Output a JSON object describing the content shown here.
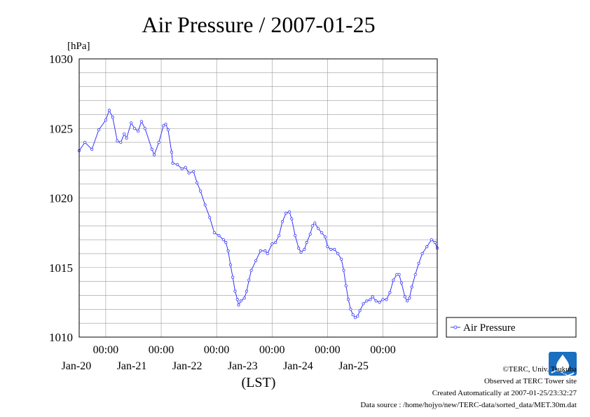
{
  "chart_data": {
    "type": "line",
    "title": "Air Pressure / 2007-01-25",
    "ylabel": "[hPa]",
    "xlabel": "(LST)",
    "ylim": [
      1010,
      1030
    ],
    "xlim": [
      "2007-01-19 12:30",
      "2007-01-25 23:30"
    ],
    "y_ticks": [
      "1010",
      "1015",
      "1020",
      "1025",
      "1030"
    ],
    "x_ticks": [
      {
        "time": "00:00",
        "date": "Jan-20"
      },
      {
        "time": "00:00",
        "date": "Jan-21"
      },
      {
        "time": "00:00",
        "date": "Jan-22"
      },
      {
        "time": "00:00",
        "date": "Jan-23"
      },
      {
        "time": "00:00",
        "date": "Jan-24"
      },
      {
        "time": "00:00",
        "date": "Jan-25"
      }
    ],
    "grid": true,
    "legend_position": "right",
    "series": [
      {
        "name": "Air Pressure",
        "color": "#3333ff",
        "points": [
          [
            "2007-01-19 12:30",
            1023.4
          ],
          [
            "2007-01-19 15:00",
            1024.0
          ],
          [
            "2007-01-19 18:00",
            1023.5
          ],
          [
            "2007-01-19 21:00",
            1024.9
          ],
          [
            "2007-01-20 00:00",
            1025.6
          ],
          [
            "2007-01-20 01:30",
            1026.3
          ],
          [
            "2007-01-20 03:00",
            1025.8
          ],
          [
            "2007-01-20 05:00",
            1024.1
          ],
          [
            "2007-01-20 06:30",
            1024.0
          ],
          [
            "2007-01-20 08:00",
            1024.6
          ],
          [
            "2007-01-20 09:00",
            1024.3
          ],
          [
            "2007-01-20 11:00",
            1025.4
          ],
          [
            "2007-01-20 12:30",
            1025.0
          ],
          [
            "2007-01-20 14:00",
            1024.8
          ],
          [
            "2007-01-20 15:30",
            1025.5
          ],
          [
            "2007-01-20 17:00",
            1025.0
          ],
          [
            "2007-01-20 20:00",
            1023.5
          ],
          [
            "2007-01-20 21:00",
            1023.1
          ],
          [
            "2007-01-20 23:00",
            1024.0
          ],
          [
            "2007-01-21 01:00",
            1025.2
          ],
          [
            "2007-01-21 02:00",
            1025.3
          ],
          [
            "2007-01-21 03:00",
            1024.9
          ],
          [
            "2007-01-21 04:30",
            1023.3
          ],
          [
            "2007-01-21 05:00",
            1022.5
          ],
          [
            "2007-01-21 07:00",
            1022.4
          ],
          [
            "2007-01-21 09:00",
            1022.1
          ],
          [
            "2007-01-21 10:30",
            1022.2
          ],
          [
            "2007-01-21 12:00",
            1021.8
          ],
          [
            "2007-01-21 14:00",
            1021.9
          ],
          [
            "2007-01-21 15:30",
            1021.1
          ],
          [
            "2007-01-21 17:00",
            1020.5
          ],
          [
            "2007-01-21 19:00",
            1019.5
          ],
          [
            "2007-01-21 21:00",
            1018.6
          ],
          [
            "2007-01-21 23:00",
            1017.5
          ],
          [
            "2007-01-22 01:00",
            1017.3
          ],
          [
            "2007-01-22 03:00",
            1017.0
          ],
          [
            "2007-01-22 04:00",
            1016.8
          ],
          [
            "2007-01-22 05:00",
            1016.2
          ],
          [
            "2007-01-22 06:00",
            1015.2
          ],
          [
            "2007-01-22 07:00",
            1014.3
          ],
          [
            "2007-01-22 08:00",
            1013.3
          ],
          [
            "2007-01-22 09:00",
            1012.7
          ],
          [
            "2007-01-22 09:30",
            1012.3
          ],
          [
            "2007-01-22 10:30",
            1012.6
          ],
          [
            "2007-01-22 12:00",
            1012.8
          ],
          [
            "2007-01-22 13:00",
            1013.3
          ],
          [
            "2007-01-22 14:00",
            1014.1
          ],
          [
            "2007-01-22 15:00",
            1014.8
          ],
          [
            "2007-01-22 17:00",
            1015.5
          ],
          [
            "2007-01-22 19:00",
            1016.2
          ],
          [
            "2007-01-22 21:00",
            1016.2
          ],
          [
            "2007-01-22 22:00",
            1016.0
          ],
          [
            "2007-01-23 00:00",
            1016.7
          ],
          [
            "2007-01-23 01:30",
            1016.8
          ],
          [
            "2007-01-23 03:00",
            1017.3
          ],
          [
            "2007-01-23 04:30",
            1018.3
          ],
          [
            "2007-01-23 06:00",
            1018.9
          ],
          [
            "2007-01-23 07:30",
            1019.0
          ],
          [
            "2007-01-23 08:30",
            1018.5
          ],
          [
            "2007-01-23 10:00",
            1017.3
          ],
          [
            "2007-01-23 11:30",
            1016.4
          ],
          [
            "2007-01-23 12:30",
            1016.1
          ],
          [
            "2007-01-23 14:00",
            1016.3
          ],
          [
            "2007-01-23 15:00",
            1016.8
          ],
          [
            "2007-01-23 16:30",
            1017.4
          ],
          [
            "2007-01-23 17:30",
            1018.0
          ],
          [
            "2007-01-23 18:30",
            1018.2
          ],
          [
            "2007-01-23 20:00",
            1017.8
          ],
          [
            "2007-01-23 21:30",
            1017.5
          ],
          [
            "2007-01-23 23:00",
            1017.2
          ],
          [
            "2007-01-24 00:00",
            1016.5
          ],
          [
            "2007-01-24 01:30",
            1016.3
          ],
          [
            "2007-01-24 03:00",
            1016.3
          ],
          [
            "2007-01-24 04:30",
            1016.0
          ],
          [
            "2007-01-24 06:00",
            1015.6
          ],
          [
            "2007-01-24 07:00",
            1014.8
          ],
          [
            "2007-01-24 08:00",
            1013.7
          ],
          [
            "2007-01-24 09:00",
            1012.7
          ],
          [
            "2007-01-24 10:00",
            1012.0
          ],
          [
            "2007-01-24 11:00",
            1011.6
          ],
          [
            "2007-01-24 12:00",
            1011.4
          ],
          [
            "2007-01-24 13:00",
            1011.5
          ],
          [
            "2007-01-24 14:00",
            1011.9
          ],
          [
            "2007-01-24 15:30",
            1012.4
          ],
          [
            "2007-01-24 17:00",
            1012.6
          ],
          [
            "2007-01-24 18:30",
            1012.7
          ],
          [
            "2007-01-24 19:30",
            1012.9
          ],
          [
            "2007-01-24 21:00",
            1012.6
          ],
          [
            "2007-01-24 22:30",
            1012.5
          ],
          [
            "2007-01-25 00:00",
            1012.7
          ],
          [
            "2007-01-25 01:30",
            1012.7
          ],
          [
            "2007-01-25 03:00",
            1013.2
          ],
          [
            "2007-01-25 04:30",
            1014.1
          ],
          [
            "2007-01-25 06:00",
            1014.5
          ],
          [
            "2007-01-25 07:00",
            1014.5
          ],
          [
            "2007-01-25 08:00",
            1013.9
          ],
          [
            "2007-01-25 09:30",
            1012.9
          ],
          [
            "2007-01-25 10:30",
            1012.6
          ],
          [
            "2007-01-25 11:30",
            1012.8
          ],
          [
            "2007-01-25 12:30",
            1013.6
          ],
          [
            "2007-01-25 14:00",
            1014.5
          ],
          [
            "2007-01-25 15:30",
            1015.3
          ],
          [
            "2007-01-25 17:00",
            1016.0
          ],
          [
            "2007-01-25 19:00",
            1016.5
          ],
          [
            "2007-01-25 21:00",
            1017.0
          ],
          [
            "2007-01-25 22:30",
            1016.8
          ],
          [
            "2007-01-25 23:30",
            1016.4
          ]
        ]
      }
    ]
  },
  "footer": {
    "copyright": "©TERC, Univ. Tsukuba",
    "observed": "Observed at TERC Tower site",
    "created": "Created Automatically at 2007-01-25/23:32:27",
    "source": "Data source : /home/hojyo/new/TERC-data/sorted_data/MET.30m.dat",
    "logo_text": "TERC"
  }
}
